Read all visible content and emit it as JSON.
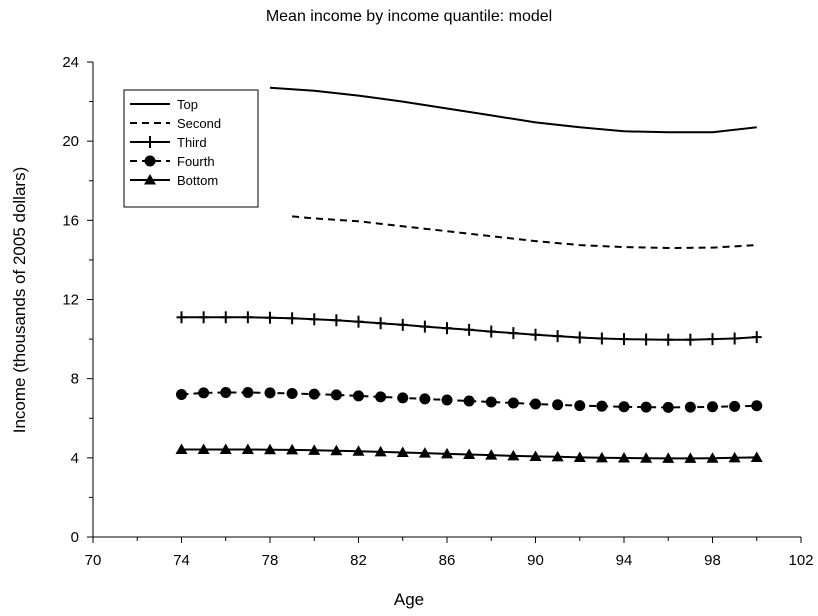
{
  "chart_data": {
    "type": "line",
    "title": "Mean income by income quantile: model",
    "xlabel": "Age",
    "ylabel": "Income (thousands of 2005 dollars)",
    "xlim": [
      70,
      102
    ],
    "ylim": [
      0,
      24
    ],
    "xticks": [
      70,
      74,
      78,
      82,
      86,
      90,
      94,
      98,
      102
    ],
    "yticks": [
      0,
      4,
      8,
      12,
      16,
      20,
      24
    ],
    "grid": false,
    "legend_position": "top-left",
    "series": [
      {
        "name": "Top",
        "style": "solid",
        "marker": "none",
        "x": [
          78,
          80,
          82,
          84,
          86,
          88,
          90,
          92,
          94,
          96,
          98,
          100
        ],
        "values": [
          22.7,
          22.55,
          22.3,
          22.0,
          21.65,
          21.3,
          20.95,
          20.7,
          20.5,
          20.45,
          20.45,
          20.7
        ]
      },
      {
        "name": "Second",
        "style": "dashed",
        "marker": "none",
        "x": [
          79,
          80,
          82,
          84,
          86,
          88,
          90,
          92,
          94,
          96,
          98,
          100
        ],
        "values": [
          16.2,
          16.1,
          15.95,
          15.7,
          15.45,
          15.2,
          14.95,
          14.75,
          14.65,
          14.6,
          14.62,
          14.75
        ]
      },
      {
        "name": "Third",
        "style": "solid",
        "marker": "plus",
        "x": [
          74,
          75,
          76,
          77,
          78,
          79,
          80,
          81,
          82,
          83,
          84,
          85,
          86,
          87,
          88,
          89,
          90,
          91,
          92,
          93,
          94,
          95,
          96,
          97,
          98,
          99,
          100
        ],
        "values": [
          11.1,
          11.1,
          11.1,
          11.1,
          11.08,
          11.05,
          11.0,
          10.95,
          10.88,
          10.8,
          10.72,
          10.63,
          10.55,
          10.47,
          10.38,
          10.3,
          10.22,
          10.15,
          10.08,
          10.03,
          10.0,
          9.98,
          9.97,
          9.97,
          10.0,
          10.03,
          10.1
        ]
      },
      {
        "name": "Fourth",
        "style": "dashed",
        "marker": "circle",
        "x": [
          74,
          75,
          76,
          77,
          78,
          79,
          80,
          81,
          82,
          83,
          84,
          85,
          86,
          87,
          88,
          89,
          90,
          91,
          92,
          93,
          94,
          95,
          96,
          97,
          98,
          99,
          100
        ],
        "values": [
          7.2,
          7.28,
          7.3,
          7.3,
          7.28,
          7.25,
          7.22,
          7.18,
          7.13,
          7.08,
          7.03,
          6.98,
          6.92,
          6.87,
          6.82,
          6.77,
          6.72,
          6.68,
          6.64,
          6.61,
          6.58,
          6.56,
          6.55,
          6.56,
          6.58,
          6.6,
          6.63
        ]
      },
      {
        "name": "Bottom",
        "style": "solid",
        "marker": "triangle",
        "x": [
          74,
          75,
          76,
          77,
          78,
          79,
          80,
          81,
          82,
          83,
          84,
          85,
          86,
          87,
          88,
          89,
          90,
          91,
          92,
          93,
          94,
          95,
          96,
          97,
          98,
          99,
          100
        ],
        "values": [
          4.42,
          4.42,
          4.42,
          4.42,
          4.41,
          4.4,
          4.38,
          4.36,
          4.33,
          4.3,
          4.27,
          4.24,
          4.2,
          4.17,
          4.14,
          4.1,
          4.07,
          4.05,
          4.02,
          4.0,
          3.99,
          3.98,
          3.97,
          3.97,
          3.98,
          4.0,
          4.02
        ]
      }
    ]
  }
}
